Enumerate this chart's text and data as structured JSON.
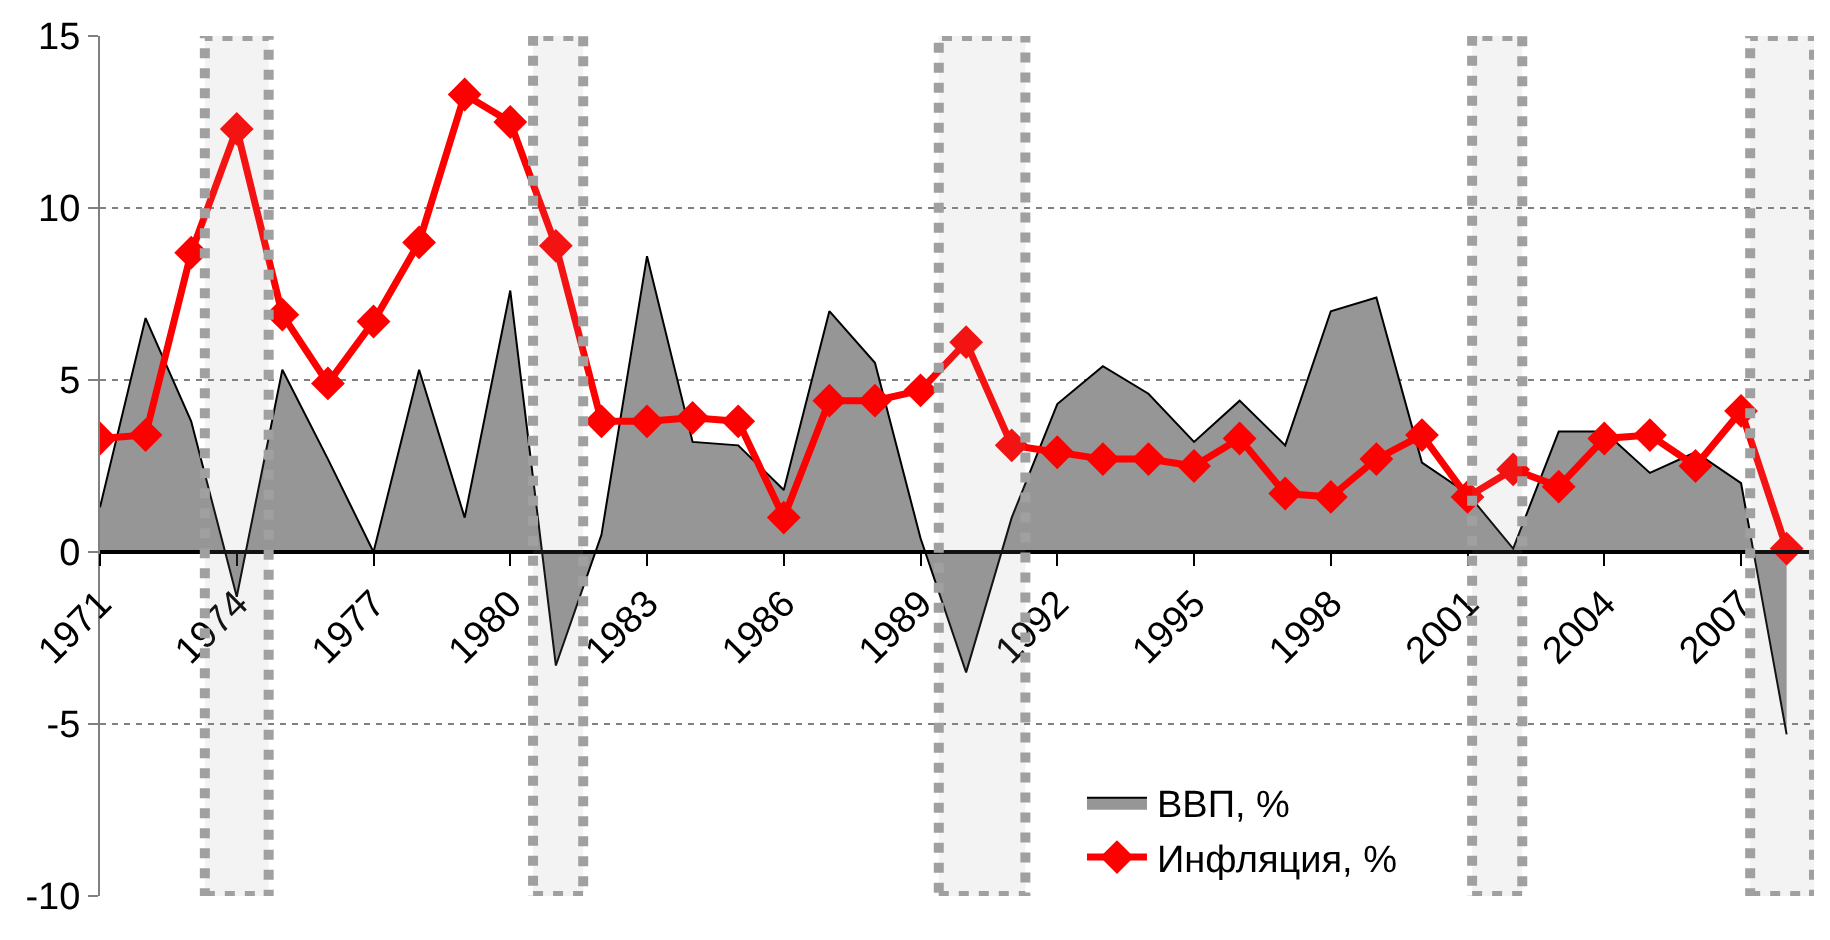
{
  "chart_data": {
    "type": "area",
    "x": [
      1971,
      1972,
      1973,
      1974,
      1975,
      1976,
      1977,
      1978,
      1979,
      1980,
      1981,
      1982,
      1983,
      1984,
      1985,
      1986,
      1987,
      1988,
      1989,
      1990,
      1991,
      1992,
      1993,
      1994,
      1995,
      1996,
      1997,
      1998,
      1999,
      2000,
      2001,
      2002,
      2003,
      2004,
      2005,
      2006,
      2007,
      2008
    ],
    "series": [
      {
        "name": "ВВП, %",
        "color": "#969696",
        "values": [
          1.3,
          6.8,
          3.8,
          -1.3,
          5.3,
          2.7,
          0,
          5.3,
          1.0,
          7.6,
          -3.3,
          0.5,
          8.6,
          3.2,
          3.1,
          1.8,
          7.0,
          5.5,
          0.4,
          -3.5,
          1.0,
          4.3,
          5.4,
          4.6,
          3.2,
          4.4,
          3.1,
          7.0,
          7.4,
          2.6,
          1.7,
          0.1,
          3.5,
          3.5,
          2.3,
          2.9,
          2.0,
          -5.3
        ]
      },
      {
        "name": "Инфляция, %",
        "type": "line",
        "color": "#ff0000",
        "marker": "diamond",
        "values": [
          3.3,
          3.4,
          8.7,
          12.3,
          6.9,
          4.9,
          6.7,
          9.0,
          13.3,
          12.5,
          8.9,
          3.8,
          3.8,
          3.9,
          3.8,
          1.0,
          4.4,
          4.4,
          4.7,
          6.1,
          3.1,
          2.9,
          2.7,
          2.7,
          2.5,
          3.3,
          1.7,
          1.6,
          2.7,
          3.4,
          1.6,
          2.4,
          1.9,
          3.3,
          3.4,
          2.5,
          4.1,
          0.1
        ]
      }
    ],
    "xlim": [
      1971,
      2008.6
    ],
    "xticks": [
      1971,
      1974,
      1977,
      1980,
      1983,
      1986,
      1989,
      1992,
      1995,
      1998,
      2001,
      2004,
      2007
    ],
    "ylim": [
      -10,
      15
    ],
    "yticks": [
      -10,
      -5,
      0,
      5,
      10,
      15
    ],
    "grid": "y",
    "legend": "bottom",
    "bands": [
      {
        "axis": "x",
        "from": 1973.3,
        "to": 1974.7,
        "color": "#a0a0a0"
      },
      {
        "axis": "x",
        "from": 1980.5,
        "to": 1981.6,
        "color": "#a0a0a0"
      },
      {
        "axis": "x",
        "from": 1989.4,
        "to": 1991.3,
        "color": "#a0a0a0"
      },
      {
        "axis": "x",
        "from": 2001.1,
        "to": 2002.2,
        "color": "#a0a0a0"
      },
      {
        "axis": "x",
        "from": 2007.2,
        "to": 2008.6,
        "color": "#a0a0a0"
      }
    ]
  }
}
